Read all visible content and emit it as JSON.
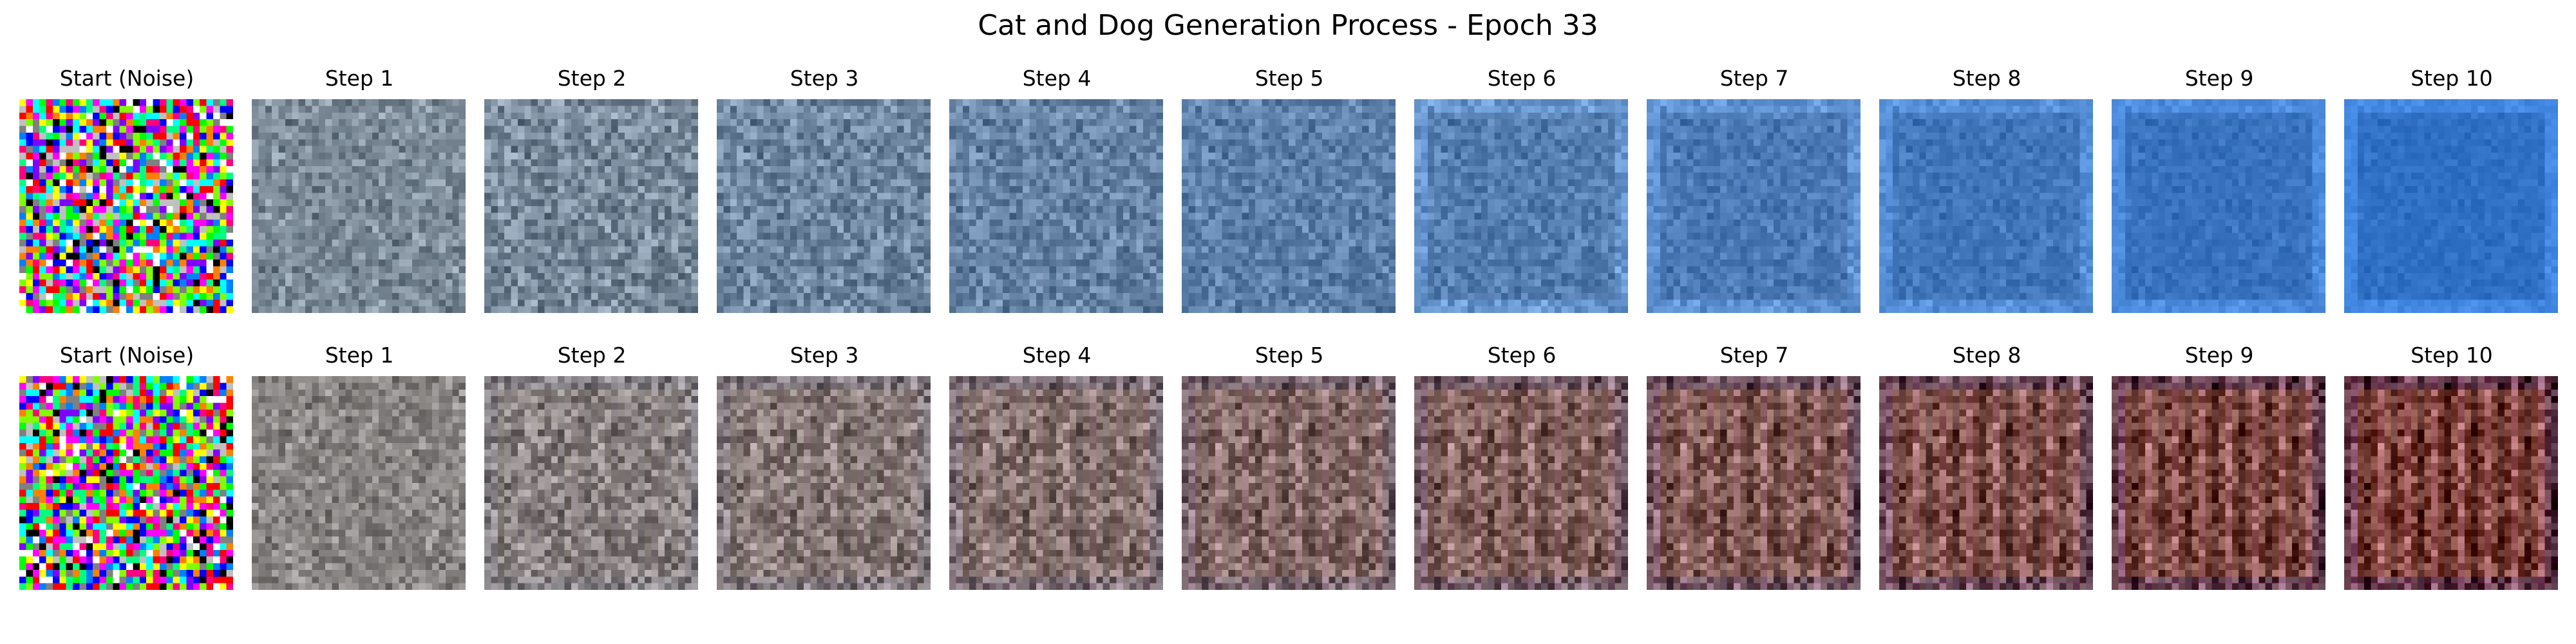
{
  "figure": {
    "title": "Cat and Dog Generation Process - Epoch 33"
  },
  "rows": [
    {
      "panels": [
        {
          "label": "Start (Noise)",
          "kind": "noise",
          "seed": 11
        },
        {
          "label": "Step 1",
          "kind": "blue",
          "stage": 1
        },
        {
          "label": "Step 2",
          "kind": "blue",
          "stage": 2
        },
        {
          "label": "Step 3",
          "kind": "blue",
          "stage": 3
        },
        {
          "label": "Step 4",
          "kind": "blue",
          "stage": 4
        },
        {
          "label": "Step 5",
          "kind": "blue",
          "stage": 5
        },
        {
          "label": "Step 6",
          "kind": "blue",
          "stage": 6
        },
        {
          "label": "Step 7",
          "kind": "blue",
          "stage": 7
        },
        {
          "label": "Step 8",
          "kind": "blue",
          "stage": 8
        },
        {
          "label": "Step 9",
          "kind": "blue",
          "stage": 9
        },
        {
          "label": "Step 10",
          "kind": "blue",
          "stage": 10
        }
      ]
    },
    {
      "panels": [
        {
          "label": "Start (Noise)",
          "kind": "noise",
          "seed": 29
        },
        {
          "label": "Step 1",
          "kind": "brown",
          "stage": 1
        },
        {
          "label": "Step 2",
          "kind": "brown",
          "stage": 2
        },
        {
          "label": "Step 3",
          "kind": "brown",
          "stage": 3
        },
        {
          "label": "Step 4",
          "kind": "brown",
          "stage": 4
        },
        {
          "label": "Step 5",
          "kind": "brown",
          "stage": 5
        },
        {
          "label": "Step 6",
          "kind": "brown",
          "stage": 6
        },
        {
          "label": "Step 7",
          "kind": "brown",
          "stage": 7
        },
        {
          "label": "Step 8",
          "kind": "brown",
          "stage": 8
        },
        {
          "label": "Step 9",
          "kind": "brown",
          "stage": 9
        },
        {
          "label": "Step 10",
          "kind": "brown",
          "stage": 10
        }
      ]
    }
  ],
  "palette": {
    "blue_target": "#2f6fc4",
    "brown_target": "#7a3f34",
    "gray_start": "#8a9090"
  }
}
